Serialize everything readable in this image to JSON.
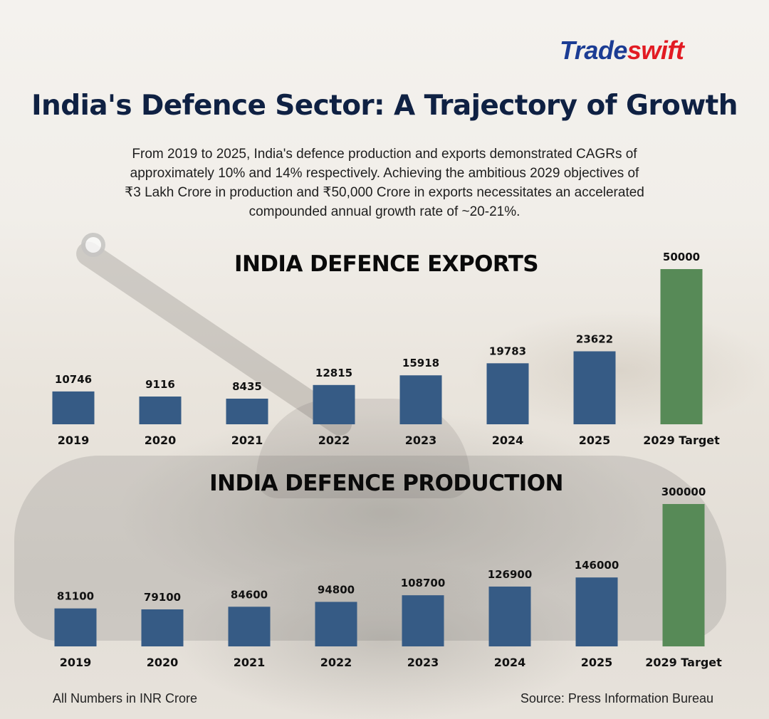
{
  "brand": {
    "part1": "Trade",
    "part2": "swift",
    "color1": "#1b3c94",
    "color2": "#e21b23"
  },
  "title": "India's Defence Sector: A Trajectory of Growth",
  "subtitle_lines": [
    "From 2019 to 2025, India's defence production and exports demonstrated CAGRs of",
    "approximately 10% and 14% respectively. Achieving the ambitious 2029 objectives of",
    "₹3 Lakh Crore in production and ₹50,000 Crore in exports necessitates an accelerated",
    "compounded annual growth rate of ~20-21%."
  ],
  "colors": {
    "actual": "#365b85",
    "target": "#578a57"
  },
  "chart_data": [
    {
      "type": "bar",
      "title": "INDIA DEFENCE EXPORTS",
      "categories": [
        "2019",
        "2020",
        "2021",
        "2022",
        "2023",
        "2024",
        "2025",
        "2029 Target"
      ],
      "values": [
        10746,
        9116,
        8435,
        12815,
        15918,
        19783,
        23622,
        50000
      ],
      "bar_kind": [
        "actual",
        "actual",
        "actual",
        "actual",
        "actual",
        "actual",
        "actual",
        "target"
      ],
      "xlabel": "",
      "ylabel": "",
      "units": "INR Crore",
      "grid": false,
      "legend": "none",
      "ylim": [
        0,
        50000
      ]
    },
    {
      "type": "bar",
      "title": "INDIA DEFENCE PRODUCTION",
      "categories": [
        "2019",
        "2020",
        "2021",
        "2022",
        "2023",
        "2024",
        "2025",
        "2029 Target"
      ],
      "values": [
        81100,
        79100,
        84600,
        94800,
        108700,
        126900,
        146000,
        300000
      ],
      "bar_kind": [
        "actual",
        "actual",
        "actual",
        "actual",
        "actual",
        "actual",
        "actual",
        "target"
      ],
      "xlabel": "",
      "ylabel": "",
      "units": "INR Crore",
      "grid": false,
      "legend": "none",
      "ylim": [
        0,
        300000
      ]
    }
  ],
  "footer": {
    "note": "All Numbers in INR Crore",
    "source": "Source: Press Information Bureau"
  }
}
